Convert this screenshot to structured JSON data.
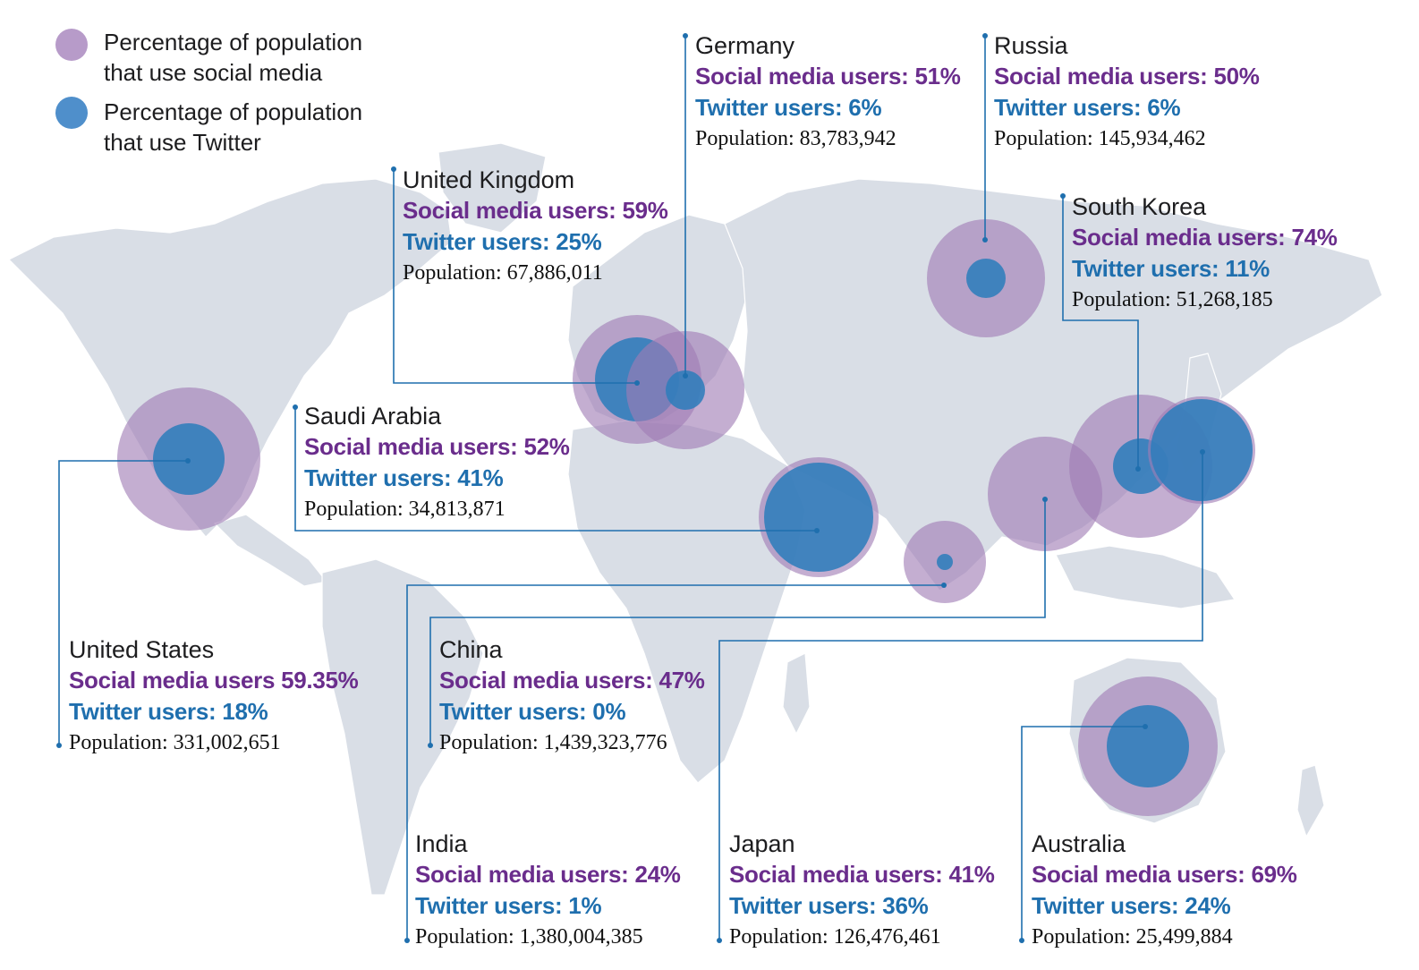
{
  "legend": {
    "social": {
      "label": "Percentage of population\nthat use social media",
      "color": "#a07cb5"
    },
    "twitter": {
      "label": "Percentage of population\nthat use Twitter",
      "color": "#2f7dbb"
    }
  },
  "colors": {
    "land": "#d9dee6",
    "social_text": "#6a2d8c",
    "twitter_text": "#1f6fae",
    "leader": "#1f6fae"
  },
  "countries": [
    {
      "key": "germany",
      "name": "Germany",
      "social": "Social media users: 51%",
      "twitter": "Twitter users: 6%",
      "population": "Population: 83,783,942"
    },
    {
      "key": "russia",
      "name": "Russia",
      "social": "Social media users: 50%",
      "twitter": "Twitter users: 6%",
      "population": "Population: 145,934,462"
    },
    {
      "key": "uk",
      "name": "United Kingdom",
      "social": "Social media users: 59%",
      "twitter": "Twitter users: 25%",
      "population": "Population: 67,886,011"
    },
    {
      "key": "south_korea",
      "name": "South Korea",
      "social": "Social media users: 74%",
      "twitter": "Twitter users: 11%",
      "population": "Population: 51,268,185"
    },
    {
      "key": "saudi_arabia",
      "name": "Saudi Arabia",
      "social": "Social media users: 52%",
      "twitter": "Twitter users: 41%",
      "population": "Population: 34,813,871"
    },
    {
      "key": "united_states",
      "name": "United States",
      "social": "Social media users 59.35%",
      "twitter": "Twitter users: 18%",
      "population": "Population: 331,002,651"
    },
    {
      "key": "china",
      "name": "China",
      "social": "Social media users: 47%",
      "twitter": "Twitter users: 0%",
      "population": "Population: 1,439,323,776"
    },
    {
      "key": "india",
      "name": "India",
      "social": "Social media users: 24%",
      "twitter": "Twitter users: 1%",
      "population": "Population: 1,380,004,385"
    },
    {
      "key": "japan",
      "name": "Japan",
      "social": "Social media users: 41%",
      "twitter": "Twitter users: 36%",
      "population": "Population: 126,476,461"
    },
    {
      "key": "australia",
      "name": "Australia",
      "social": "Social media users: 69%",
      "twitter": "Twitter users: 24%",
      "population": "Population: 25,499,884"
    }
  ]
}
